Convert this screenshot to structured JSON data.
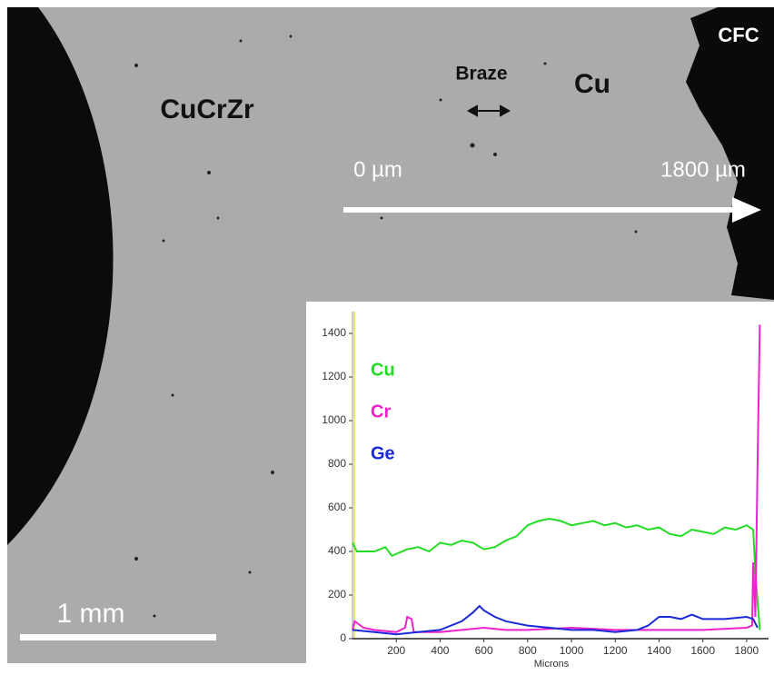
{
  "image_labels": {
    "cfc": "CFC",
    "braze": "Braze",
    "cu": "Cu",
    "cucrzr": "CuCrZr",
    "start": "0 µm",
    "end": "1800 µm",
    "scale_bar": "1 mm"
  },
  "chart_data": {
    "type": "line",
    "x_label": "Microns",
    "xlim": [
      0,
      1900
    ],
    "ylim": [
      0,
      1500
    ],
    "xticks": [
      200,
      400,
      600,
      800,
      1000,
      1200,
      1400,
      1600,
      1800
    ],
    "yticks": [
      0,
      200,
      400,
      600,
      800,
      1000,
      1200,
      1400
    ],
    "series": [
      {
        "name": "Cu",
        "color": "#22dd22",
        "x": [
          0,
          20,
          100,
          150,
          180,
          250,
          300,
          350,
          400,
          450,
          500,
          550,
          600,
          650,
          700,
          750,
          800,
          850,
          900,
          950,
          1000,
          1050,
          1100,
          1150,
          1200,
          1250,
          1300,
          1350,
          1400,
          1450,
          1500,
          1550,
          1600,
          1650,
          1700,
          1750,
          1800,
          1830,
          1840,
          1860
        ],
        "values": [
          440,
          400,
          400,
          420,
          380,
          410,
          420,
          400,
          440,
          430,
          450,
          440,
          410,
          420,
          450,
          470,
          520,
          540,
          550,
          540,
          520,
          530,
          540,
          520,
          530,
          510,
          520,
          500,
          510,
          480,
          470,
          500,
          490,
          480,
          510,
          500,
          520,
          500,
          300,
          40
        ]
      },
      {
        "name": "Cr",
        "color": "#ee22cc",
        "x": [
          0,
          10,
          50,
          100,
          200,
          240,
          250,
          270,
          280,
          400,
          500,
          600,
          700,
          800,
          1000,
          1200,
          1400,
          1600,
          1800,
          1825,
          1830,
          1840,
          1850,
          1860
        ],
        "values": [
          40,
          80,
          50,
          40,
          30,
          50,
          100,
          90,
          30,
          30,
          40,
          50,
          40,
          40,
          50,
          40,
          40,
          40,
          50,
          60,
          350,
          100,
          800,
          1440
        ]
      },
      {
        "name": "Ge",
        "color": "#1a2ad8",
        "x": [
          0,
          100,
          200,
          300,
          400,
          500,
          550,
          580,
          600,
          650,
          700,
          800,
          900,
          1000,
          1100,
          1200,
          1300,
          1350,
          1400,
          1450,
          1500,
          1550,
          1600,
          1700,
          1800,
          1830,
          1850
        ],
        "values": [
          40,
          30,
          20,
          30,
          40,
          80,
          120,
          150,
          130,
          100,
          80,
          60,
          50,
          40,
          40,
          30,
          40,
          60,
          100,
          100,
          90,
          110,
          90,
          90,
          100,
          90,
          50
        ]
      }
    ]
  }
}
